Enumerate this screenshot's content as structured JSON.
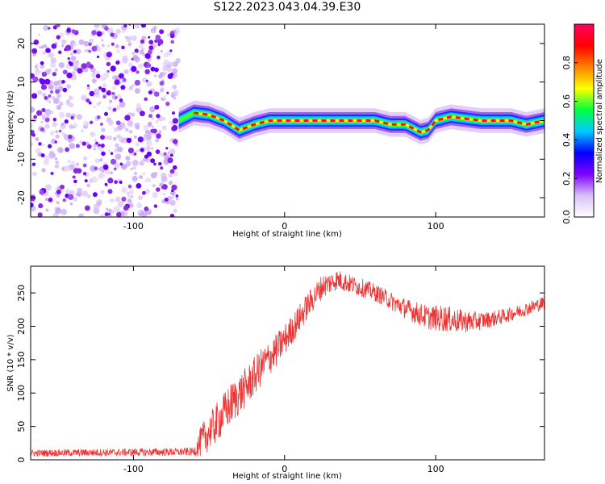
{
  "title": "S122.2023.043.04.39.E30",
  "chart_data": [
    {
      "type": "heatmap",
      "xlabel": "Height of straight line (km)",
      "ylabel": "Frequency (Hz)",
      "xlim": [
        -168,
        172
      ],
      "ylim": [
        -25,
        25
      ],
      "xticks": [
        -100,
        0,
        100
      ],
      "yticks": [
        -20,
        -10,
        0,
        10,
        20
      ],
      "colorbar": {
        "label": "Normalized spectral amplitude",
        "range": [
          0,
          1
        ],
        "ticks": [
          0.0,
          0.2,
          0.4,
          0.6,
          0.8
        ],
        "colormap": [
          "#ffffff",
          "#d8c0f8",
          "#8000ff",
          "#0000ff",
          "#00ccff",
          "#00ff40",
          "#ffff00",
          "#ff8000",
          "#ff0000",
          "#ff0060"
        ]
      },
      "noise_region_x": [
        -168,
        -70
      ],
      "ridge": {
        "x": [
          -70,
          -60,
          -50,
          -40,
          -30,
          -20,
          -10,
          0,
          10,
          20,
          30,
          40,
          50,
          60,
          70,
          80,
          90,
          95,
          100,
          110,
          120,
          130,
          140,
          150,
          160,
          172
        ],
        "y": [
          0,
          2,
          1.5,
          0,
          -2.5,
          -1,
          0,
          0,
          0,
          0,
          0,
          0,
          0,
          0,
          -1,
          -1,
          -3,
          -2.5,
          0,
          1,
          0.5,
          0,
          0,
          0,
          -1,
          0
        ]
      }
    },
    {
      "type": "line",
      "xlabel": "Height of straight line (km)",
      "ylabel": "SNR (10 * v/v)",
      "xlim": [
        -168,
        172
      ],
      "ylim": [
        0,
        290
      ],
      "xticks": [
        -100,
        0,
        100
      ],
      "yticks": [
        0,
        50,
        100,
        150,
        200,
        250
      ],
      "color": "#ee3333",
      "envelope": {
        "x": [
          -168,
          -60,
          -55,
          -45,
          -35,
          -25,
          -15,
          -5,
          5,
          15,
          25,
          35,
          45,
          55,
          65,
          75,
          85,
          95,
          105,
          115,
          125,
          135,
          145,
          155,
          165,
          172
        ],
        "y": [
          10,
          12,
          28,
          55,
          85,
          110,
          140,
          165,
          195,
          230,
          260,
          270,
          262,
          255,
          245,
          232,
          222,
          213,
          212,
          208,
          207,
          210,
          215,
          222,
          230,
          235
        ],
        "noise": [
          5,
          6,
          25,
          30,
          32,
          30,
          28,
          25,
          22,
          20,
          18,
          15,
          14,
          13,
          13,
          14,
          16,
          18,
          20,
          18,
          15,
          12,
          11,
          10,
          10,
          10
        ]
      }
    }
  ]
}
